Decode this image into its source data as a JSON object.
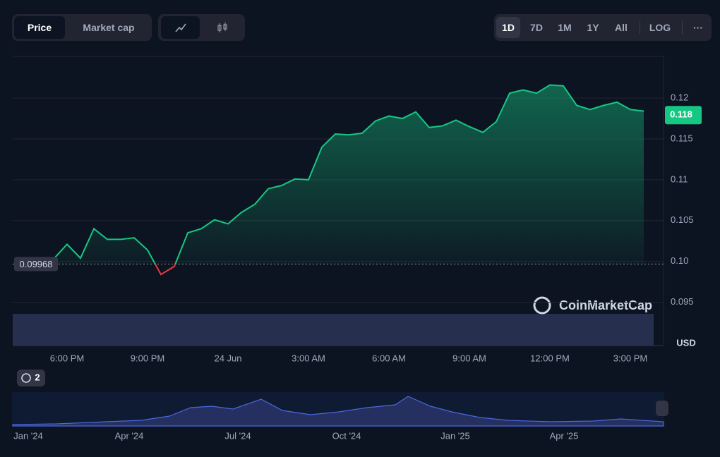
{
  "chart_data": {
    "type": "line",
    "buttons": {
      "price": "Price",
      "market_cap": "Market cap",
      "ranges": [
        "1D",
        "7D",
        "1M",
        "1Y",
        "All"
      ],
      "log": "LOG",
      "more": "···"
    },
    "categories": [
      null,
      "6:00 PM",
      null,
      null,
      null,
      null,
      null,
      "9:00 PM",
      null,
      null,
      null,
      null,
      null,
      "24 Jun",
      null,
      null,
      null,
      null,
      null,
      "3:00 AM",
      null,
      null,
      null,
      null,
      null,
      "6:00 AM",
      null,
      null,
      null,
      null,
      null,
      "9:00 AM",
      null,
      null,
      null,
      null,
      null,
      "12:00 PM",
      null,
      null,
      null,
      null,
      null,
      "3:00 PM",
      null
    ],
    "series": [
      {
        "name": "Price",
        "color": "#16c784",
        "values": [
          0.1003,
          0.1021,
          0.1004,
          0.104,
          0.1027,
          0.1027,
          0.1029,
          0.1014,
          0.0984,
          0.0994,
          0.1035,
          0.104,
          0.1051,
          0.1046,
          0.106,
          0.107,
          0.1089,
          0.1093,
          0.1101,
          0.11,
          0.114,
          0.1156,
          0.1155,
          0.1157,
          0.1172,
          0.1178,
          0.1175,
          0.1183,
          0.1164,
          0.1166,
          0.1173,
          0.1165,
          0.1158,
          0.1171,
          0.1206,
          0.121,
          0.1206,
          0.1216,
          0.1215,
          0.1191,
          0.1186,
          0.1191,
          0.1195,
          0.1186,
          0.1184
        ]
      }
    ],
    "below_color": "#ea3943",
    "open_price": 0.09968,
    "last_price": 0.118,
    "ylim": [
      0.0897,
      0.1251
    ],
    "yticks": [
      0.095,
      {
        "value": 0.1,
        "label": "0.10"
      },
      0.105,
      0.11,
      0.115,
      0.12
    ],
    "grid": true,
    "currency": "USD",
    "watermark": "CoinMarketCap",
    "badge": "2",
    "navigator_labels": [
      "Jan '24",
      "Apr '24",
      "Jul '24",
      "Oct '24",
      "Jan '25",
      "Apr '25"
    ]
  }
}
